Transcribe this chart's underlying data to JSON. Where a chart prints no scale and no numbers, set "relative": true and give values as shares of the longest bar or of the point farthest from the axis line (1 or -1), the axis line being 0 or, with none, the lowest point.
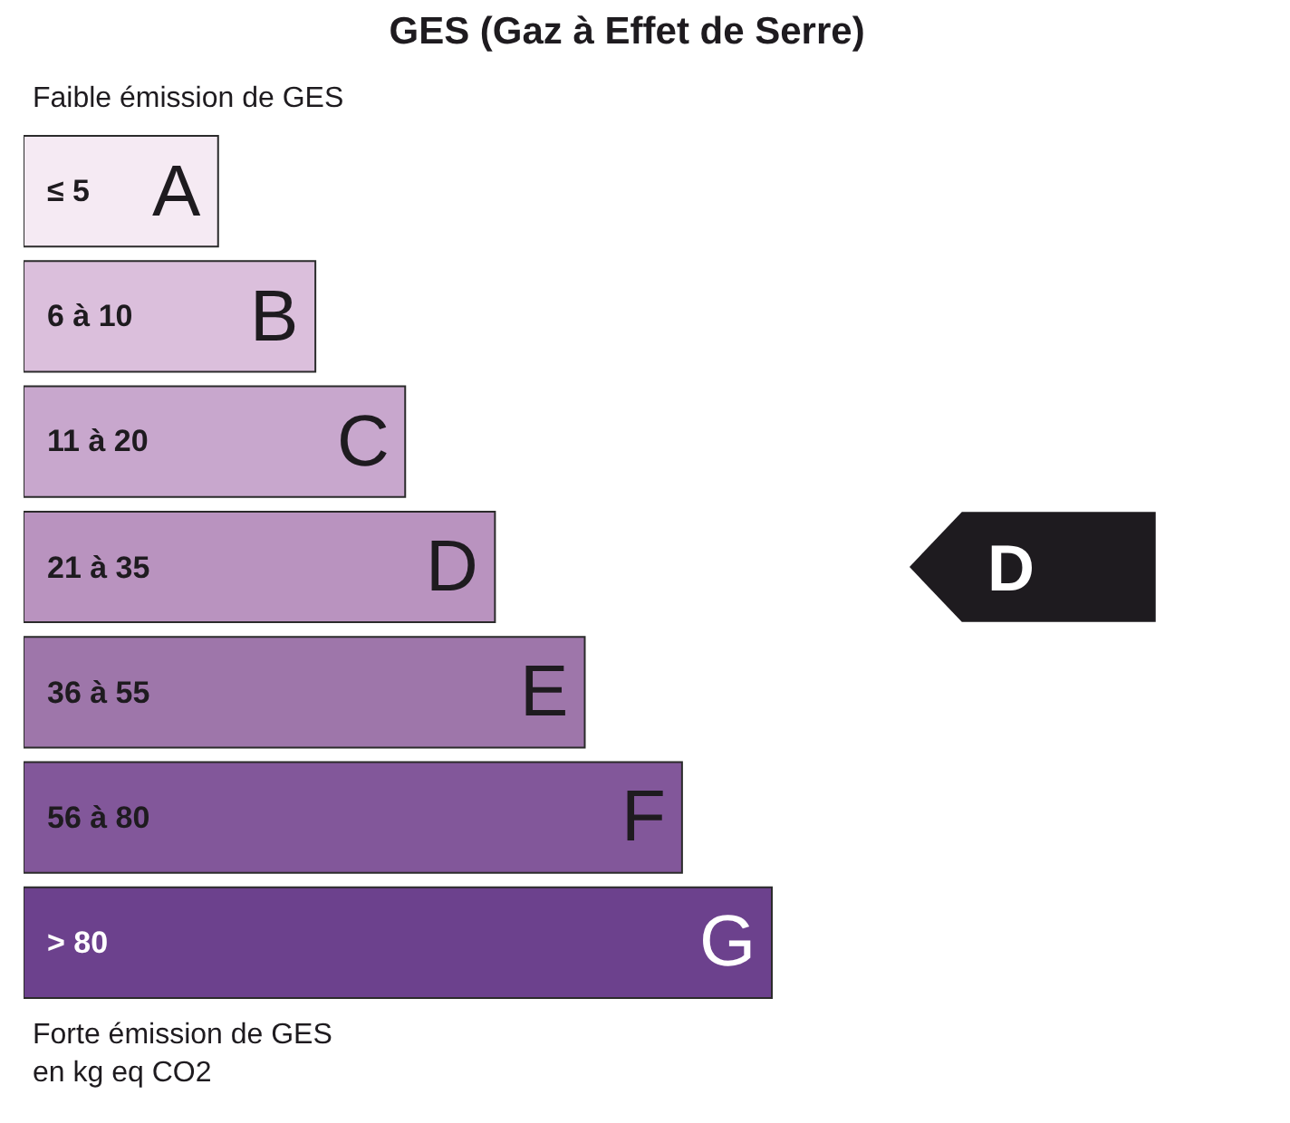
{
  "chart_data": {
    "type": "bar",
    "orientation": "horizontal",
    "relative": true,
    "title": "GES (Gaz à Effet de Serre)",
    "categories": [
      "A",
      "B",
      "C",
      "D",
      "E",
      "F",
      "G"
    ],
    "values": [
      0.26,
      0.39,
      0.51,
      0.63,
      0.75,
      0.88,
      1
    ],
    "colors": [
      "#f5eaf3",
      "#dbbfdc",
      "#c8a7cd",
      "#b993bf",
      "#9e76aa",
      "#82579a",
      "#6c418d"
    ],
    "needle": "D",
    "annotations": [
      "Faible émission de GES",
      "≤ 5",
      "6 à 10",
      "11 à 20",
      "21 à 35",
      "36 à 55",
      "56 à 80",
      "> 80",
      "Forte émission de GES\nen kg eq CO2"
    ]
  }
}
